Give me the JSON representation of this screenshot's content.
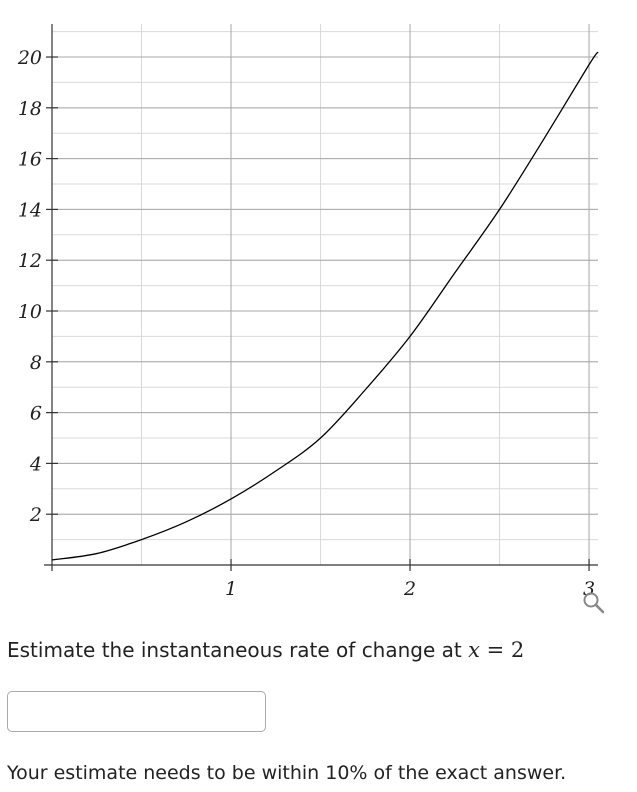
{
  "chart_data": {
    "type": "line",
    "title": "",
    "xlabel": "",
    "ylabel": "",
    "xlim": [
      0,
      3.05
    ],
    "ylim": [
      0,
      21.3
    ],
    "x_major_ticks": [
      1,
      2,
      3
    ],
    "x_tick_labels": [
      "1",
      "2",
      "3"
    ],
    "y_major_ticks": [
      2,
      4,
      6,
      8,
      10,
      12,
      14,
      16,
      18,
      20
    ],
    "y_tick_labels": [
      "2",
      "4",
      "6",
      "8",
      "10",
      "12",
      "14",
      "16",
      "18",
      "20"
    ],
    "grid": true,
    "minor_grid_step": {
      "x": 0.5,
      "y": 1
    },
    "series": [
      {
        "x": [
          0,
          0.25,
          0.5,
          0.75,
          1,
          1.25,
          1.5,
          1.75,
          2,
          2.25,
          2.5,
          2.75,
          3,
          3.05
        ],
        "y": [
          0.2,
          0.45,
          1.0,
          1.7,
          2.6,
          3.7,
          5.0,
          6.9,
          9.0,
          11.5,
          14.0,
          16.8,
          19.7,
          20.2
        ],
        "color": "#000000"
      }
    ]
  },
  "icons": {
    "zoom": "magnifier-zoom-icon"
  },
  "question": {
    "prefix": "Estimate the instantaneous rate of change at ",
    "math_var": "x",
    "math_rest": " = 2"
  },
  "answer_input": {
    "value": "",
    "placeholder": ""
  },
  "note": "Your estimate needs to be within 10% of the exact answer."
}
